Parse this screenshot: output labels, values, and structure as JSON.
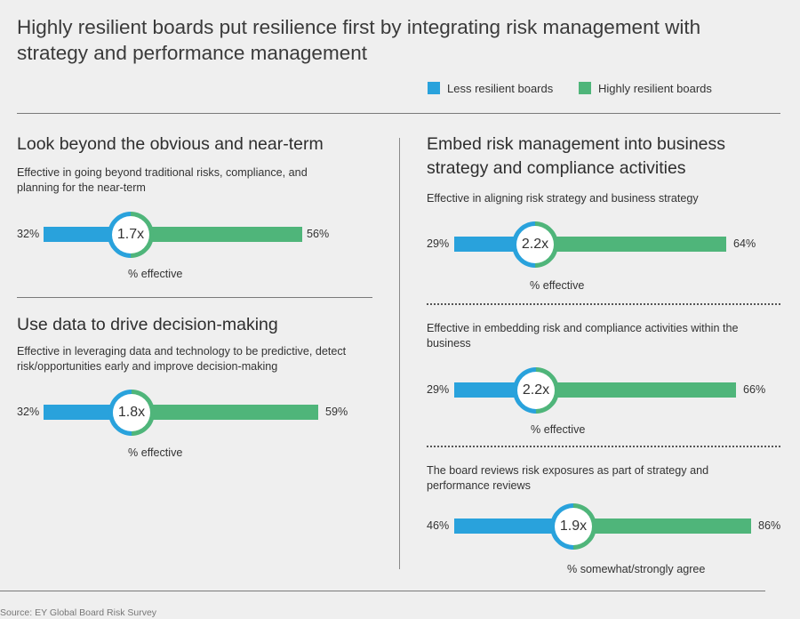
{
  "title": "Highly resilient boards put resilience first by integrating risk management with strategy and performance management",
  "legend": {
    "less": "Less resilient boards",
    "high": "Highly resilient boards"
  },
  "colors": {
    "less": "#29a2dc",
    "high": "#4fb57a"
  },
  "sections": {
    "look": {
      "title": "Look beyond the obvious and near-term",
      "desc": "Effective in going beyond traditional risks, compliance, and planning for the near-term"
    },
    "data": {
      "title": "Use data to drive decision-making",
      "desc": "Effective in leveraging data and technology to be predictive, detect risk/opportunities early and improve decision-making"
    },
    "embed": {
      "title": "Embed risk management into business strategy and compliance activities"
    }
  },
  "chart_data": [
    {
      "type": "bar",
      "title": "Effective in going beyond traditional risks, compliance, and planning for the near-term",
      "series": [
        {
          "name": "Less resilient boards",
          "values": [
            32
          ]
        },
        {
          "name": "Highly resilient boards",
          "values": [
            56
          ]
        }
      ],
      "labels": {
        "less": "32%",
        "high": "56%",
        "ratio": "1.7x"
      },
      "caption": "% effective"
    },
    {
      "type": "bar",
      "title": "Effective in leveraging data and technology to be predictive, detect risk/opportunities early and improve decision-making",
      "series": [
        {
          "name": "Less resilient boards",
          "values": [
            32
          ]
        },
        {
          "name": "Highly resilient boards",
          "values": [
            59
          ]
        }
      ],
      "labels": {
        "less": "32%",
        "high": "59%",
        "ratio": "1.8x"
      },
      "caption": "% effective"
    },
    {
      "type": "bar",
      "title": "Effective in aligning risk strategy and business strategy",
      "series": [
        {
          "name": "Less resilient boards",
          "values": [
            29
          ]
        },
        {
          "name": "Highly resilient boards",
          "values": [
            64
          ]
        }
      ],
      "labels": {
        "less": "29%",
        "high": "64%",
        "ratio": "2.2x"
      },
      "caption": "% effective"
    },
    {
      "type": "bar",
      "title": "Effective in embedding risk and compliance activities within the business",
      "series": [
        {
          "name": "Less resilient boards",
          "values": [
            29
          ]
        },
        {
          "name": "Highly resilient boards",
          "values": [
            66
          ]
        }
      ],
      "labels": {
        "less": "29%",
        "high": "66%",
        "ratio": "2.2x"
      },
      "caption": "% effective"
    },
    {
      "type": "bar",
      "title": "The board reviews risk exposures as part of strategy and performance reviews",
      "series": [
        {
          "name": "Less resilient boards",
          "values": [
            46
          ]
        },
        {
          "name": "Highly resilient boards",
          "values": [
            86
          ]
        }
      ],
      "labels": {
        "less": "46%",
        "high": "86%",
        "ratio": "1.9x"
      },
      "caption": "% somewhat/strongly agree"
    }
  ],
  "source": "Source: EY Global Board Risk Survey"
}
